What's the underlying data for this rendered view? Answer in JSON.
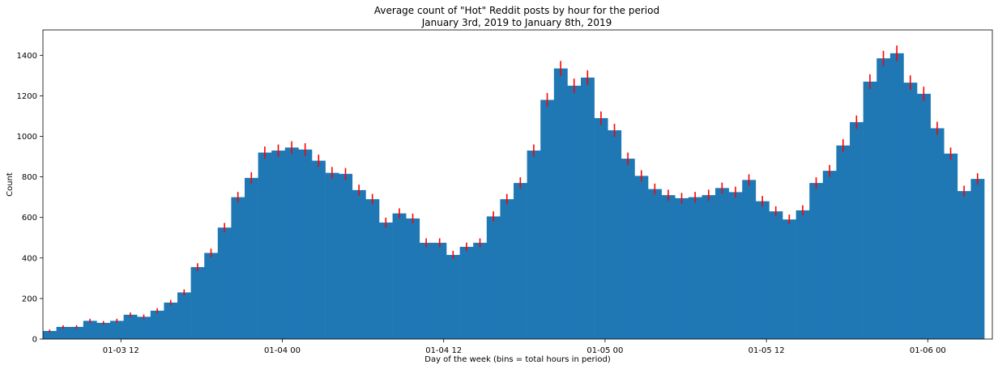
{
  "chart_data": {
    "type": "bar",
    "title_lines": [
      "Average count of \"Hot\" Reddit posts by hour for the period",
      "January 3rd, 2019 to January 8th, 2019"
    ],
    "xlabel": "Day of the week (bins = total hours in period)",
    "ylabel": "Count",
    "x_ticks": [
      {
        "hour": 12,
        "label": "01-03 12"
      },
      {
        "hour": 24,
        "label": "01-04 00"
      },
      {
        "hour": 36,
        "label": "01-04 12"
      },
      {
        "hour": 48,
        "label": "01-05 00"
      },
      {
        "hour": 60,
        "label": "01-05 12"
      },
      {
        "hour": 72,
        "label": "01-06 00"
      }
    ],
    "y_ticks": [
      0,
      200,
      400,
      600,
      800,
      1000,
      1200,
      1400
    ],
    "xlim": [
      6.2,
      76.8
    ],
    "ylim": [
      0,
      1525
    ],
    "bar_color": "#1f77b4",
    "error_color": "#ff0000",
    "bins_start_hour": 6.2,
    "bin_width_hours": 1,
    "values": [
      40,
      60,
      60,
      90,
      80,
      90,
      120,
      110,
      140,
      180,
      230,
      355,
      425,
      550,
      700,
      795,
      920,
      930,
      945,
      935,
      880,
      820,
      815,
      735,
      690,
      575,
      620,
      595,
      475,
      475,
      415,
      455,
      475,
      605,
      690,
      770,
      930,
      1180,
      1335,
      1250,
      1290,
      1090,
      1030,
      890,
      805,
      740,
      710,
      695,
      700,
      710,
      745,
      725,
      785,
      680,
      630,
      590,
      635,
      770,
      830,
      955,
      1070,
      1270,
      1385,
      1410,
      1265,
      1210,
      1040,
      915,
      730,
      790
    ],
    "errors": [
      7,
      8,
      8,
      10,
      9,
      10,
      11,
      11,
      12,
      13,
      15,
      19,
      21,
      23,
      26,
      28,
      30,
      30,
      31,
      31,
      30,
      29,
      29,
      27,
      26,
      24,
      25,
      24,
      22,
      22,
      20,
      21,
      22,
      25,
      26,
      28,
      30,
      34,
      37,
      35,
      36,
      33,
      32,
      30,
      28,
      27,
      27,
      26,
      26,
      27,
      27,
      27,
      28,
      26,
      25,
      24,
      25,
      28,
      29,
      31,
      33,
      36,
      37,
      38,
      36,
      35,
      32,
      30,
      27,
      28
    ]
  }
}
